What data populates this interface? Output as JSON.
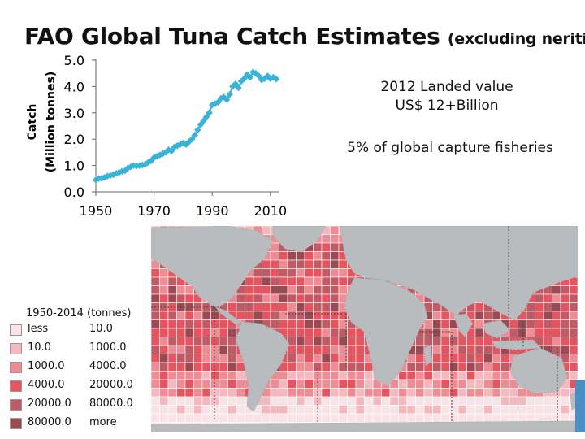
{
  "title": {
    "main": "FAO Global Tuna Catch Estimates",
    "sub": "(excluding neritics)"
  },
  "info": {
    "line1": "2012 Landed value",
    "line2": "US$ 12+Billion",
    "line3": "5% of global capture fisheries"
  },
  "chart_data": {
    "type": "line",
    "title": "FAO Global Tuna Catch Estimates (excluding neritics)",
    "ylabel": "Catch (Million tonnes)",
    "ylabel_line1": "Catch",
    "ylabel_line2": "(Million tonnes)",
    "xlabel": "",
    "xlim": [
      1950,
      2012
    ],
    "ylim": [
      0,
      5
    ],
    "xticks": [
      "1950",
      "1970",
      "1990",
      "2010"
    ],
    "yticks": [
      "0.0",
      "1.0",
      "2.0",
      "3.0",
      "4.0",
      "5.0"
    ],
    "series": [
      {
        "name": "Catch",
        "color": "#39b3d6",
        "x": [
          1950,
          1951,
          1952,
          1953,
          1954,
          1955,
          1956,
          1957,
          1958,
          1959,
          1960,
          1961,
          1962,
          1963,
          1964,
          1965,
          1966,
          1967,
          1968,
          1969,
          1970,
          1971,
          1972,
          1973,
          1974,
          1975,
          1976,
          1977,
          1978,
          1979,
          1980,
          1981,
          1982,
          1983,
          1984,
          1985,
          1986,
          1987,
          1988,
          1989,
          1990,
          1991,
          1992,
          1993,
          1994,
          1995,
          1996,
          1997,
          1998,
          1999,
          2000,
          2001,
          2002,
          2003,
          2004,
          2005,
          2006,
          2007,
          2008,
          2009,
          2010,
          2011,
          2012
        ],
        "values": [
          0.45,
          0.5,
          0.52,
          0.55,
          0.6,
          0.62,
          0.65,
          0.7,
          0.73,
          0.78,
          0.8,
          0.9,
          0.95,
          1.0,
          0.98,
          1.0,
          1.02,
          1.05,
          1.12,
          1.18,
          1.3,
          1.35,
          1.4,
          1.45,
          1.5,
          1.6,
          1.55,
          1.7,
          1.75,
          1.8,
          1.85,
          1.8,
          1.9,
          2.0,
          2.15,
          2.35,
          2.55,
          2.7,
          2.85,
          3.0,
          3.3,
          3.35,
          3.4,
          3.55,
          3.6,
          3.5,
          3.7,
          4.0,
          4.1,
          3.95,
          4.2,
          4.3,
          4.45,
          4.35,
          4.55,
          4.5,
          4.4,
          4.25,
          4.3,
          4.4,
          4.3,
          4.35,
          4.28
        ]
      }
    ]
  },
  "legend": {
    "title": "1950-2014 (tonnes)",
    "items": [
      {
        "lo": "less",
        "hi": "10.0",
        "color": "#f8e4e6"
      },
      {
        "lo": "10.0",
        "hi": "1000.0",
        "color": "#f4b9bf"
      },
      {
        "lo": "1000.0",
        "hi": "4000.0",
        "color": "#ee8b93"
      },
      {
        "lo": "4000.0",
        "hi": "20000.0",
        "color": "#e5545f"
      },
      {
        "lo": "20000.0",
        "hi": "80000.0",
        "color": "#c05b66"
      },
      {
        "lo": "80000.0",
        "hi": "more",
        "color": "#9a4a52"
      }
    ]
  },
  "map": {
    "ocean_color": "#e8546a",
    "land_color": "#b9bcbe"
  }
}
